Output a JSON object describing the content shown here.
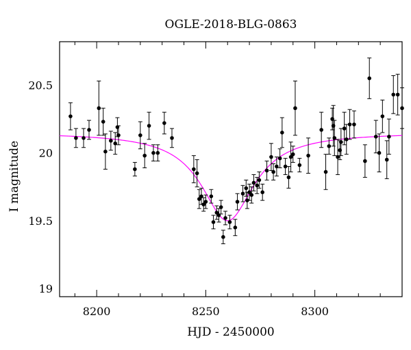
{
  "chart_data": {
    "type": "scatter",
    "title": "OGLE-2018-BLG-0863",
    "xlabel": "HJD - 2450000",
    "ylabel": "I magnitude",
    "xlim": [
      8183,
      8340
    ],
    "ylim": [
      20.82,
      18.94
    ],
    "y_inverted": true,
    "x_ticks": [
      8200,
      8250,
      8300
    ],
    "y_ticks": [
      19,
      19.5,
      20,
      20.5
    ],
    "x_tick_labels": [
      "8200",
      "8250",
      "8300"
    ],
    "y_tick_labels": [
      "19",
      "19.5",
      "20",
      "20.5"
    ],
    "grid": false,
    "colors": {
      "points": "#000000",
      "model": "#ff00ff"
    },
    "model_curve": {
      "name": "",
      "baseline_mag": 20.15,
      "peak_time": 8260,
      "peak_mag": 19.5,
      "width_days": 12.7
    },
    "series": [
      {
        "name": "",
        "x": [
          8188.0,
          8190.5,
          8194.0,
          8196.5,
          8201.0,
          8203.0,
          8204.0,
          8206.5,
          8208.5,
          8209.5,
          8210.0,
          8217.5,
          8220.0,
          8222.0,
          8224.0,
          8226.0,
          8228.0,
          8231.0,
          8234.5,
          8244.5,
          8246.0,
          8247.0,
          8248.0,
          8249.0,
          8250.0,
          8252.5,
          8253.5,
          8255.0,
          8256.0,
          8257.0,
          8258.0,
          8259.0,
          8261.0,
          8263.5,
          8264.5,
          8267.0,
          8268.5,
          8269.0,
          8270.0,
          8271.0,
          8272.0,
          8273.5,
          8274.5,
          8276.0,
          8278.0,
          8280.0,
          8281.0,
          8282.5,
          8284.0,
          8285.0,
          8286.5,
          8288.0,
          8289.0,
          8290.0,
          8291.0,
          8293.0,
          8297.0,
          8303.0,
          8305.0,
          8306.5,
          8308.0,
          8308.5,
          8309.0,
          8310.5,
          8311.5,
          8312.0,
          8313.5,
          8314.5,
          8316.0,
          8318.0,
          8323.0,
          8325.0,
          8328.0,
          8329.5,
          8331.0,
          8333.0,
          8334.0,
          8336.0,
          8338.0,
          8340.0
        ],
        "y": [
          20.27,
          20.11,
          20.11,
          20.17,
          20.33,
          20.23,
          20.01,
          20.09,
          20.07,
          20.19,
          20.13,
          19.88,
          20.13,
          19.98,
          20.2,
          20.0,
          20.0,
          20.22,
          20.11,
          19.88,
          19.85,
          19.66,
          19.68,
          19.62,
          19.64,
          19.68,
          19.49,
          19.56,
          19.54,
          19.6,
          19.38,
          19.52,
          19.49,
          19.45,
          19.64,
          19.7,
          19.74,
          19.65,
          19.71,
          19.69,
          19.78,
          19.76,
          19.8,
          19.71,
          19.87,
          19.97,
          19.86,
          19.9,
          19.96,
          20.15,
          19.9,
          19.82,
          19.97,
          19.99,
          20.33,
          19.91,
          19.98,
          20.17,
          19.86,
          20.05,
          20.25,
          20.2,
          20.11,
          19.97,
          20.02,
          20.08,
          20.18,
          20.1,
          20.21,
          20.21,
          19.94,
          20.55,
          20.12,
          20.0,
          20.27,
          19.95,
          20.12,
          20.43,
          20.43,
          20.33
        ],
        "yerr": [
          0.1,
          0.07,
          0.07,
          0.07,
          0.2,
          0.1,
          0.13,
          0.07,
          0.08,
          0.07,
          0.07,
          0.05,
          0.1,
          0.09,
          0.1,
          0.06,
          0.06,
          0.08,
          0.07,
          0.1,
          0.1,
          0.07,
          0.06,
          0.05,
          0.05,
          0.05,
          0.05,
          0.05,
          0.05,
          0.05,
          0.05,
          0.05,
          0.05,
          0.06,
          0.06,
          0.06,
          0.06,
          0.06,
          0.06,
          0.06,
          0.06,
          0.06,
          0.06,
          0.06,
          0.07,
          0.1,
          0.06,
          0.07,
          0.07,
          0.11,
          0.06,
          0.08,
          0.11,
          0.06,
          0.2,
          0.05,
          0.13,
          0.13,
          0.13,
          0.06,
          0.08,
          0.15,
          0.13,
          0.13,
          0.07,
          0.1,
          0.12,
          0.11,
          0.11,
          0.1,
          0.12,
          0.15,
          0.12,
          0.14,
          0.12,
          0.14,
          0.13,
          0.14,
          0.15,
          0.15
        ]
      }
    ]
  }
}
